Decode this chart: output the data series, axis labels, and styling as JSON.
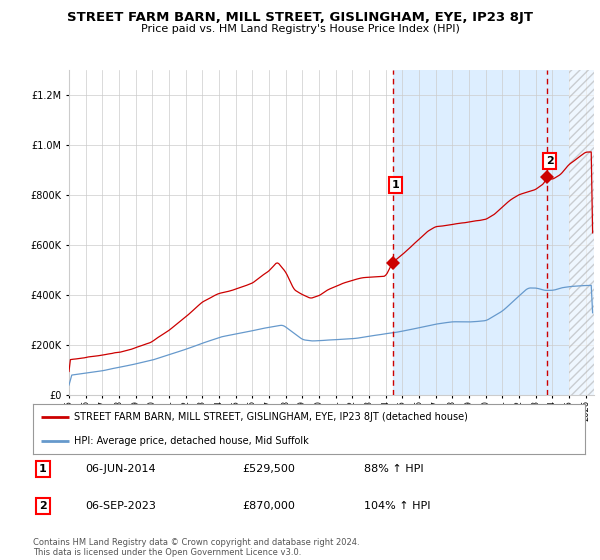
{
  "title": "STREET FARM BARN, MILL STREET, GISLINGHAM, EYE, IP23 8JT",
  "subtitle": "Price paid vs. HM Land Registry's House Price Index (HPI)",
  "legend_red": "STREET FARM BARN, MILL STREET, GISLINGHAM, EYE, IP23 8JT (detached house)",
  "legend_blue": "HPI: Average price, detached house, Mid Suffolk",
  "annotation1_date": "06-JUN-2014",
  "annotation1_price": "£529,500",
  "annotation1_hpi": "88% ↑ HPI",
  "annotation1_year": 2014.44,
  "annotation1_value": 529500,
  "annotation2_date": "06-SEP-2023",
  "annotation2_price": "£870,000",
  "annotation2_hpi": "104% ↑ HPI",
  "annotation2_year": 2023.69,
  "annotation2_value": 870000,
  "ylim_max": 1300000,
  "ylim_min": 0,
  "footer": "Contains HM Land Registry data © Crown copyright and database right 2024.\nThis data is licensed under the Open Government Licence v3.0.",
  "red_color": "#cc0000",
  "blue_color": "#6699cc",
  "shade_color": "#ddeeff",
  "grid_color": "#cccccc",
  "bg_color": "#ffffff",
  "hatch_color": "#aaaaaa"
}
